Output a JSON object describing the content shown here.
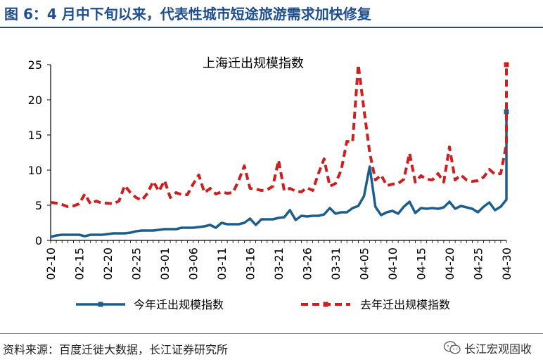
{
  "figure_title": "图 6：4 月中下旬以来，代表性城市短途旅游需求加快修复",
  "source_note": "资料来源：百度迁徙大数据，长江证券研究所",
  "brand": {
    "name": "长江宏观固收",
    "icon": "wechat-icon"
  },
  "colors": {
    "this_year": "#1b5e8c",
    "last_year": "#cc1f1f",
    "title": "#1f4e8c"
  },
  "chart_data": {
    "type": "line",
    "title": "上海迁出规模指数",
    "xlabel": "",
    "ylabel": "",
    "ylim": [
      0,
      25
    ],
    "yticks": [
      0,
      5,
      10,
      15,
      20,
      25
    ],
    "grid": false,
    "legend_position": "bottom",
    "x": [
      "02-10",
      "02-11",
      "02-12",
      "02-13",
      "02-14",
      "02-15",
      "02-16",
      "02-17",
      "02-18",
      "02-19",
      "02-20",
      "02-21",
      "02-22",
      "02-23",
      "02-24",
      "02-25",
      "02-26",
      "02-27",
      "02-28",
      "02-29",
      "03-01",
      "03-02",
      "03-03",
      "03-04",
      "03-05",
      "03-06",
      "03-07",
      "03-08",
      "03-09",
      "03-10",
      "03-11",
      "03-12",
      "03-13",
      "03-14",
      "03-15",
      "03-16",
      "03-17",
      "03-18",
      "03-19",
      "03-20",
      "03-21",
      "03-22",
      "03-23",
      "03-24",
      "03-25",
      "03-26",
      "03-27",
      "03-28",
      "03-29",
      "03-30",
      "03-31",
      "04-01",
      "04-02",
      "04-03",
      "04-04",
      "04-05",
      "04-06",
      "04-07",
      "04-08",
      "04-09",
      "04-10",
      "04-11",
      "04-12",
      "04-13",
      "04-14",
      "04-15",
      "04-16",
      "04-17",
      "04-18",
      "04-19",
      "04-20",
      "04-21",
      "04-22",
      "04-23",
      "04-24",
      "04-25",
      "04-26",
      "04-27",
      "04-28",
      "04-29",
      "04-30"
    ],
    "xtick_labels": [
      "02-10",
      "02-15",
      "02-20",
      "02-25",
      "03-01",
      "03-06",
      "03-11",
      "03-16",
      "03-21",
      "03-26",
      "03-31",
      "04-05",
      "04-10",
      "04-15",
      "04-20",
      "04-25",
      "04-30"
    ],
    "series": [
      {
        "name": "今年迁出规模指数",
        "style": "solid",
        "values": [
          0.5,
          0.7,
          0.8,
          0.8,
          0.8,
          0.8,
          0.6,
          0.8,
          0.8,
          0.8,
          0.9,
          1.0,
          1.0,
          1.0,
          1.1,
          1.3,
          1.4,
          1.4,
          1.4,
          1.5,
          1.6,
          1.6,
          1.6,
          1.8,
          1.8,
          1.8,
          1.9,
          2.0,
          2.2,
          1.8,
          2.5,
          2.3,
          2.3,
          2.3,
          2.5,
          3.1,
          2.2,
          3.0,
          3.0,
          3.0,
          3.2,
          3.3,
          4.3,
          2.9,
          3.5,
          3.4,
          3.5,
          3.5,
          3.7,
          4.6,
          3.8,
          4.0,
          4.0,
          4.6,
          4.9,
          6.3,
          10.5,
          4.8,
          3.6,
          4.0,
          4.2,
          3.8,
          4.8,
          5.5,
          3.9,
          4.6,
          4.5,
          4.6,
          4.5,
          4.7,
          5.5,
          4.5,
          4.9,
          4.7,
          4.5,
          4.0,
          4.8,
          5.4,
          4.3,
          4.8,
          5.8
        ]
      },
      {
        "name": "去年迁出规模指数",
        "style": "dashed",
        "values": [
          5.4,
          5.3,
          5.1,
          4.8,
          4.9,
          5.2,
          6.6,
          5.2,
          5.6,
          5.3,
          5.3,
          5.2,
          5.6,
          7.8,
          6.8,
          6.1,
          5.7,
          6.7,
          8.4,
          7.0,
          8.5,
          6.1,
          6.8,
          6.5,
          6.5,
          8.0,
          9.3,
          6.8,
          7.4,
          6.6,
          6.9,
          6.7,
          6.8,
          8.5,
          10.6,
          7.4,
          7.3,
          7.1,
          7.2,
          7.7,
          11.4,
          7.1,
          7.4,
          7.0,
          6.9,
          7.5,
          7.1,
          9.5,
          11.6,
          7.7,
          8.1,
          10.0,
          14.1,
          14.0,
          25.0,
          18.6,
          12.5,
          8.6,
          9.3,
          7.8,
          8.0,
          8.1,
          8.7,
          12.4,
          8.3,
          9.2,
          8.7,
          8.6,
          9.5,
          8.3,
          13.3,
          8.6,
          9.3,
          8.6,
          8.4,
          8.5,
          9.0,
          10.1,
          9.4,
          9.5,
          13.7
        ]
      }
    ],
    "end_points": {
      "今年迁出规模指数": [
        8.0,
        18.3
      ],
      "去年迁出规模指数": [
        25.0
      ]
    }
  }
}
